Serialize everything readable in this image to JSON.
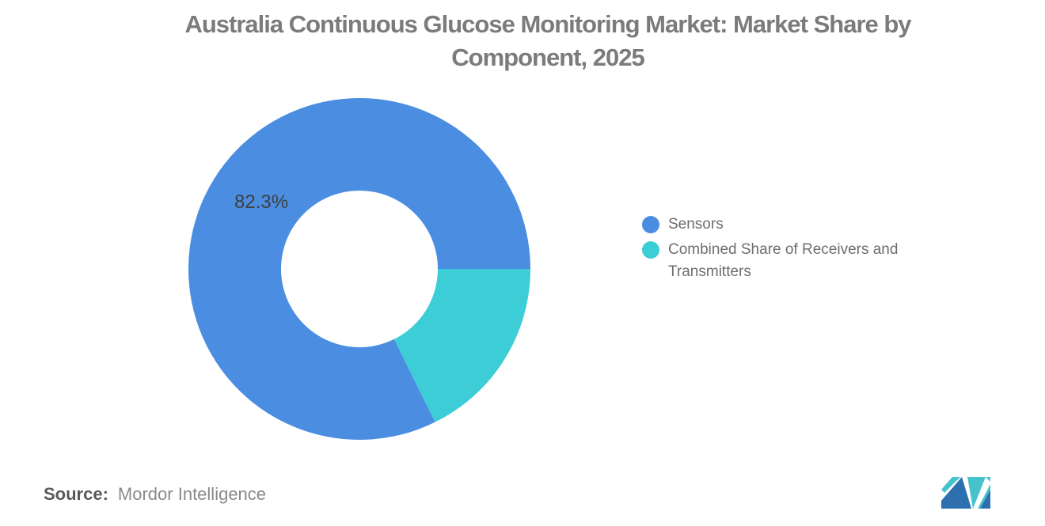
{
  "title": {
    "text": "Australia Continuous Glucose Monitoring Market: Market Share by Component, 2025"
  },
  "chart_data": {
    "type": "pie",
    "subtype": "donut",
    "title": "Australia Continuous Glucose Monitoring Market: Market Share by Component, 2025",
    "labels": [
      "Sensors",
      "Combined Share of Receivers and Transmitters"
    ],
    "values": [
      82.3,
      17.7
    ],
    "colors": [
      "#4A8DE1",
      "#3DCDD6"
    ],
    "data_labels": [
      "82.3%",
      ""
    ],
    "start_angle_deg": 0,
    "direction": "counterclockwise",
    "inner_radius_ratio": 0.46,
    "legend_position": "right",
    "background": "#FFFFFF"
  },
  "label_sensors": "82.3%",
  "legend": {
    "items": [
      {
        "label": "Sensors",
        "color": "#4A8DE1"
      },
      {
        "label": "Combined Share of Receivers and Transmitters",
        "color": "#3DCDD6"
      }
    ]
  },
  "source": {
    "label": "Source:",
    "value": "Mordor Intelligence"
  },
  "logo": {
    "name": "mordor-intelligence-logo",
    "colors": {
      "blue": "#2E6FB0",
      "teal": "#45C2CB",
      "white": "#FFFFFF"
    }
  }
}
